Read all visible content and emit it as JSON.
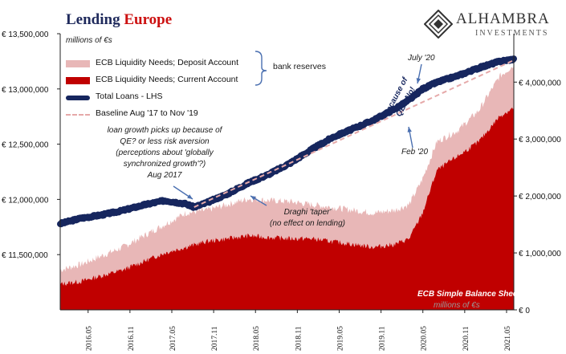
{
  "header": {
    "title_part1": "Lending",
    "title_part2": "Europe",
    "logo_name": "ALHAMBRA",
    "logo_sub": "INVESTMENTS"
  },
  "units_top": "millions of €s",
  "units_bottom": "millions of €s",
  "balance_sheet_label": "ECB Simple Balance Sheet",
  "legend": {
    "deposit": "ECB Liquidity Needs; Deposit Account",
    "current": "ECB Liquidity Needs; Current Account",
    "loans": "Total Loans - LHS",
    "baseline": "Baseline Aug '17 to Nov '19",
    "bracket_label": "bank reserves"
  },
  "annotations": {
    "qe_note": [
      "loan growth picks up because of",
      "QE? or less risk aversion",
      "(perceptions about 'globally",
      "synchronized growth'?)",
      "Aug 2017"
    ],
    "draghi_note": [
      "Draghi 'taper'",
      "(no effect on lending)"
    ],
    "july20": "July '20",
    "feb20": "Feb '20",
    "qe_no": [
      "because of",
      "QE? No!"
    ]
  },
  "colors": {
    "loans": "#16265e",
    "deposit": "#e8b7b7",
    "current": "#c00000",
    "baseline": "#e6a9a9",
    "title_blue": "#1f2a5c",
    "title_red": "#cc1010"
  },
  "chart_data": {
    "type": "line",
    "x_tick_labels": [
      "2016.05",
      "2016.11",
      "2017.05",
      "2017.11",
      "2018.05",
      "2018.11",
      "2019.05",
      "2019.11",
      "2020.05",
      "2020.11",
      "2021.05"
    ],
    "left_axis": {
      "label": "Total Loans - LHS",
      "ticks": [
        "€ 13,500,000",
        "€ 13,000,000",
        "€ 12,500,000",
        "€ 12,000,000",
        "€ 11,500,000"
      ],
      "ylim": [
        11000000,
        13500000
      ]
    },
    "right_axis": {
      "ticks": [
        "€ 4,000,000",
        "€ 3,000,000",
        "€ 2,000,000",
        "€ 1,000,000",
        "€ 0"
      ],
      "ylim": [
        0,
        4850000
      ]
    },
    "series": [
      {
        "name": "Total Loans - LHS",
        "axis": "left",
        "x": [
          2016.0,
          2016.25,
          2016.5,
          2016.75,
          2017.0,
          2017.25,
          2017.5,
          2017.6,
          2017.75,
          2018.0,
          2018.25,
          2018.5,
          2018.75,
          2019.0,
          2019.25,
          2019.5,
          2019.75,
          2020.0,
          2020.17,
          2020.33,
          2020.5,
          2020.75,
          2021.0,
          2021.25,
          2021.42
        ],
        "values": [
          11780000,
          11830000,
          11860000,
          11900000,
          11950000,
          11990000,
          11960000,
          11930000,
          11970000,
          12050000,
          12150000,
          12230000,
          12330000,
          12450000,
          12560000,
          12640000,
          12720000,
          12820000,
          12900000,
          13000000,
          13060000,
          13120000,
          13190000,
          13250000,
          13270000
        ]
      },
      {
        "name": "ECB Liquidity Needs; Deposit Account",
        "axis": "right",
        "x": [
          2016.0,
          2016.25,
          2016.5,
          2016.75,
          2017.0,
          2017.25,
          2017.5,
          2017.75,
          2018.0,
          2018.25,
          2018.5,
          2018.75,
          2019.0,
          2019.25,
          2019.5,
          2019.75,
          2020.0,
          2020.17,
          2020.33,
          2020.5,
          2020.75,
          2021.0,
          2021.25,
          2021.42
        ],
        "values": [
          700000,
          800000,
          950000,
          1100000,
          1300000,
          1500000,
          1700000,
          1750000,
          1850000,
          1950000,
          1920000,
          1900000,
          1850000,
          1800000,
          1750000,
          1700000,
          1750000,
          1850000,
          2300000,
          2950000,
          3150000,
          3500000,
          4100000,
          4300000
        ]
      },
      {
        "name": "ECB Liquidity Needs; Current Account",
        "axis": "right",
        "x": [
          2016.0,
          2016.25,
          2016.5,
          2016.75,
          2017.0,
          2017.25,
          2017.5,
          2017.75,
          2018.0,
          2018.25,
          2018.5,
          2018.75,
          2019.0,
          2019.25,
          2019.5,
          2019.75,
          2020.0,
          2020.17,
          2020.33,
          2020.5,
          2020.75,
          2021.0,
          2021.25,
          2021.42
        ],
        "values": [
          450000,
          500000,
          600000,
          700000,
          850000,
          1000000,
          1100000,
          1200000,
          1250000,
          1300000,
          1270000,
          1250000,
          1250000,
          1200000,
          1150000,
          1100000,
          1150000,
          1250000,
          1700000,
          2450000,
          2700000,
          2950000,
          3400000,
          3550000
        ]
      },
      {
        "name": "Baseline Aug '17 to Nov '19",
        "axis": "left",
        "style": "dashed",
        "x": [
          2017.6,
          2021.42
        ],
        "values": [
          11930000,
          13260000
        ]
      }
    ],
    "grid": false,
    "legend_position": "top-left"
  }
}
